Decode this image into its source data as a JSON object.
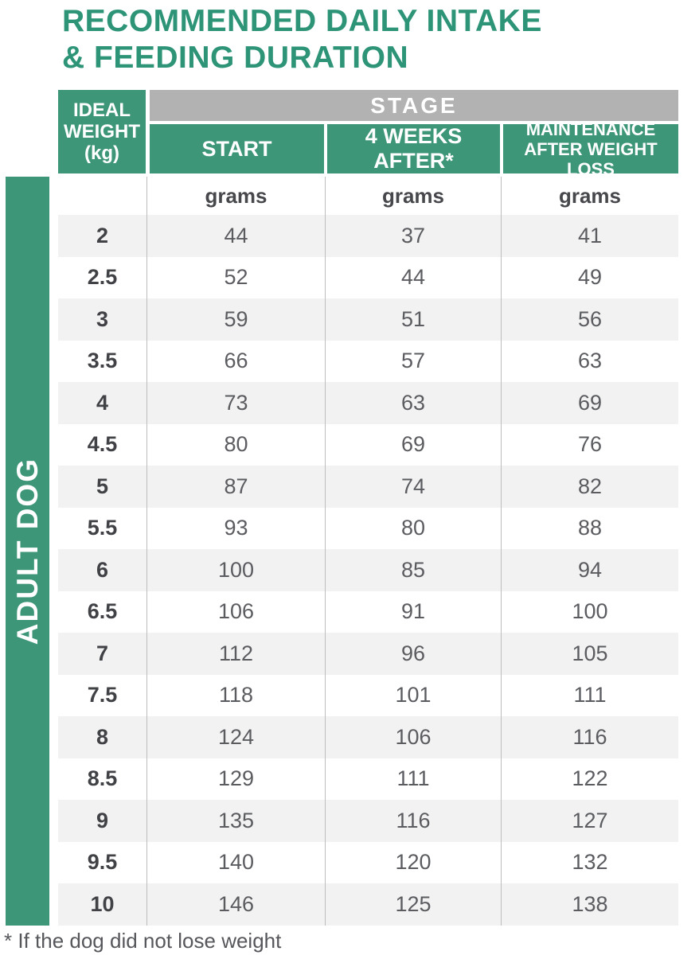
{
  "title": {
    "line1": "RECOMMENDED DAILY INTAKE",
    "line2": "& FEEDING DURATION"
  },
  "sidebar": {
    "label": "ADULT DOG"
  },
  "table": {
    "corner": {
      "line1": "IDEAL",
      "line2": "WEIGHT",
      "line3": "(kg)"
    },
    "stage": "STAGE",
    "columns": [
      "START",
      "4 WEEKS AFTER*",
      "MAINTENANCE AFTER WEIGHT LOSS"
    ],
    "units": [
      "grams",
      "grams",
      "grams"
    ],
    "rows": [
      {
        "weight": "2",
        "values": [
          "44",
          "37",
          "41"
        ]
      },
      {
        "weight": "2.5",
        "values": [
          "52",
          "44",
          "49"
        ]
      },
      {
        "weight": "3",
        "values": [
          "59",
          "51",
          "56"
        ]
      },
      {
        "weight": "3.5",
        "values": [
          "66",
          "57",
          "63"
        ]
      },
      {
        "weight": "4",
        "values": [
          "73",
          "63",
          "69"
        ]
      },
      {
        "weight": "4.5",
        "values": [
          "80",
          "69",
          "76"
        ]
      },
      {
        "weight": "5",
        "values": [
          "87",
          "74",
          "82"
        ]
      },
      {
        "weight": "5.5",
        "values": [
          "93",
          "80",
          "88"
        ]
      },
      {
        "weight": "6",
        "values": [
          "100",
          "85",
          "94"
        ]
      },
      {
        "weight": "6.5",
        "values": [
          "106",
          "91",
          "100"
        ]
      },
      {
        "weight": "7",
        "values": [
          "112",
          "96",
          "105"
        ]
      },
      {
        "weight": "7.5",
        "values": [
          "118",
          "101",
          "111"
        ]
      },
      {
        "weight": "8",
        "values": [
          "124",
          "106",
          "116"
        ]
      },
      {
        "weight": "8.5",
        "values": [
          "129",
          "111",
          "122"
        ]
      },
      {
        "weight": "9",
        "values": [
          "135",
          "116",
          "127"
        ]
      },
      {
        "weight": "9.5",
        "values": [
          "140",
          "120",
          "132"
        ]
      },
      {
        "weight": "10",
        "values": [
          "146",
          "125",
          "138"
        ]
      }
    ]
  },
  "footnote": "* If the dog did not lose weight",
  "colors": {
    "green": "#3d9678",
    "title_green": "#2e9477",
    "stage_gray": "#b2b2b2",
    "row_alt": "#f2f2f2",
    "separator": "#bdbdbd",
    "text_dark": "#414246",
    "text_value": "#5b5c60"
  },
  "chart_data": {
    "type": "table",
    "title": "RECOMMENDED DAILY INTAKE & FEEDING DURATION",
    "group_label": "ADULT DOG",
    "stage_header": "STAGE",
    "unit": "grams",
    "columns": [
      "IDEAL WEIGHT (kg)",
      "START (grams)",
      "4 WEEKS AFTER* (grams)",
      "MAINTENANCE AFTER WEIGHT LOSS (grams)"
    ],
    "rows": [
      [
        2,
        44,
        37,
        41
      ],
      [
        2.5,
        52,
        44,
        49
      ],
      [
        3,
        59,
        51,
        56
      ],
      [
        3.5,
        66,
        57,
        63
      ],
      [
        4,
        73,
        63,
        69
      ],
      [
        4.5,
        80,
        69,
        76
      ],
      [
        5,
        87,
        74,
        82
      ],
      [
        5.5,
        93,
        80,
        88
      ],
      [
        6,
        100,
        85,
        94
      ],
      [
        6.5,
        106,
        91,
        100
      ],
      [
        7,
        112,
        96,
        105
      ],
      [
        7.5,
        118,
        101,
        111
      ],
      [
        8,
        124,
        106,
        116
      ],
      [
        8.5,
        129,
        111,
        122
      ],
      [
        9,
        135,
        116,
        127
      ],
      [
        9.5,
        140,
        120,
        132
      ],
      [
        10,
        146,
        125,
        138
      ]
    ],
    "footnote": "* If the dog did not lose weight"
  }
}
